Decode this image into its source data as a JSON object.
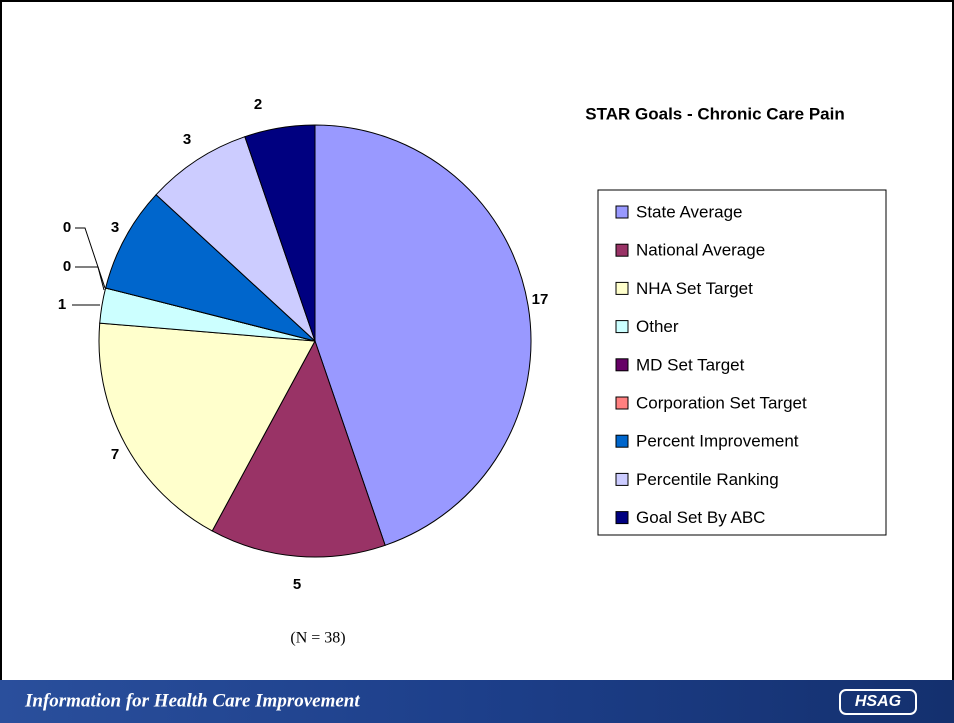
{
  "chart_data": {
    "type": "pie",
    "title": "STAR Goals - Chronic Care Pain",
    "categories": [
      "State Average",
      "National Average",
      "NHA Set Target",
      "Other",
      "MD Set Target",
      "Corporation Set Target",
      "Percent Improvement",
      "Percentile Ranking",
      "Goal Set By ABC"
    ],
    "values": [
      17,
      5,
      7,
      1,
      0,
      0,
      3,
      3,
      2
    ],
    "colors": [
      "#9999ff",
      "#993366",
      "#ffffcc",
      "#ccffff",
      "#660066",
      "#ff8080",
      "#0066cc",
      "#ccccff",
      "#000080"
    ],
    "legend": "right",
    "note": "(N = 38)"
  },
  "footer": {
    "tagline": "Information for Health Care Improvement",
    "logo": "HSAG"
  }
}
